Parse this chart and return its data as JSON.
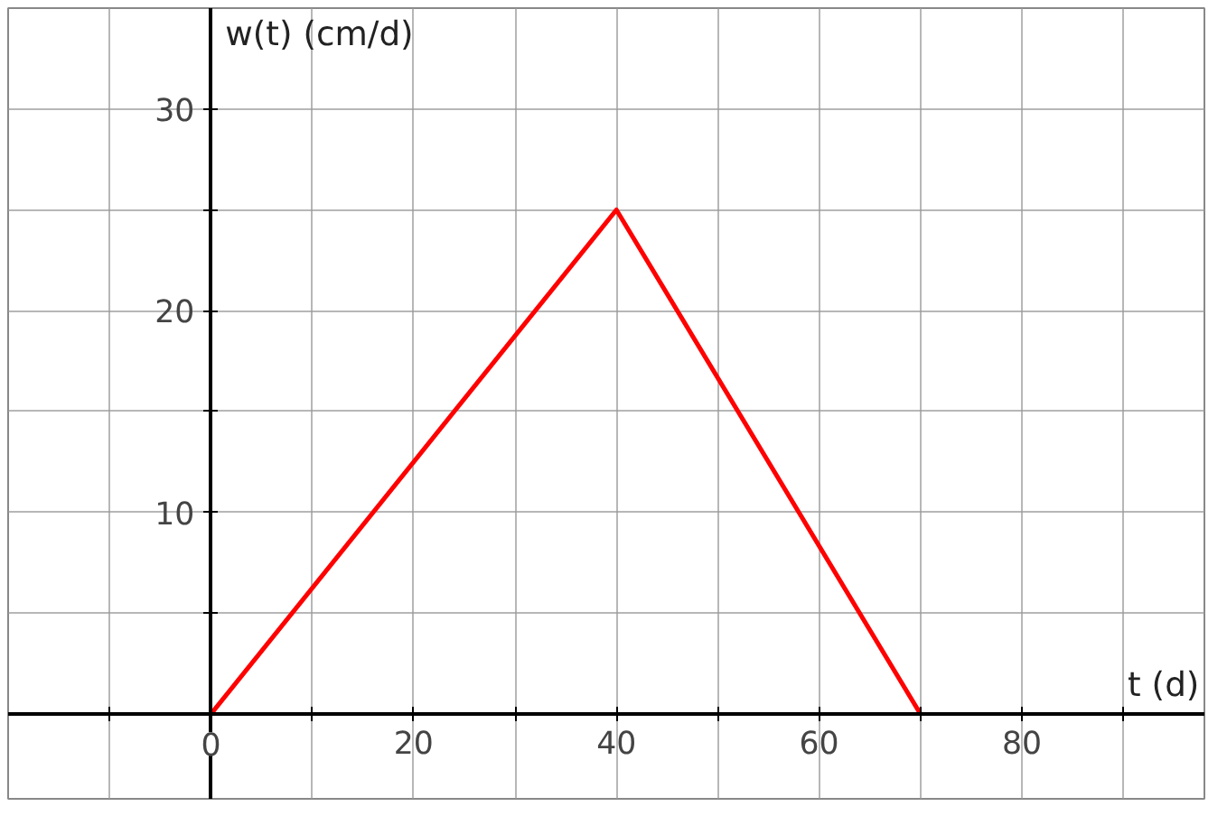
{
  "chart_data": {
    "type": "line",
    "xlabel": "t (d)",
    "ylabel": "w(t) (cm/d)",
    "x": [
      0,
      40,
      70
    ],
    "series": [
      {
        "color": "#ff0000",
        "values": [
          0,
          25,
          0
        ]
      }
    ],
    "xlim": [
      -20,
      98
    ],
    "ylim": [
      -4.2,
      35
    ],
    "xticks": [
      {
        "value": -10,
        "label": null
      },
      {
        "value": 0,
        "label": "0"
      },
      {
        "value": 10,
        "label": null
      },
      20,
      {
        "value": 30,
        "label": null
      },
      40,
      {
        "value": 50,
        "label": null
      },
      60,
      {
        "value": 70,
        "label": null
      },
      80,
      {
        "value": 90,
        "label": null
      }
    ],
    "yticks": [
      {
        "value": 0,
        "label": null
      },
      {
        "value": 5,
        "label": null
      },
      10,
      {
        "value": 15,
        "label": null
      },
      20,
      {
        "value": 25,
        "label": null
      },
      30
    ],
    "grid": true,
    "marker": "none",
    "line_style": "solid"
  }
}
